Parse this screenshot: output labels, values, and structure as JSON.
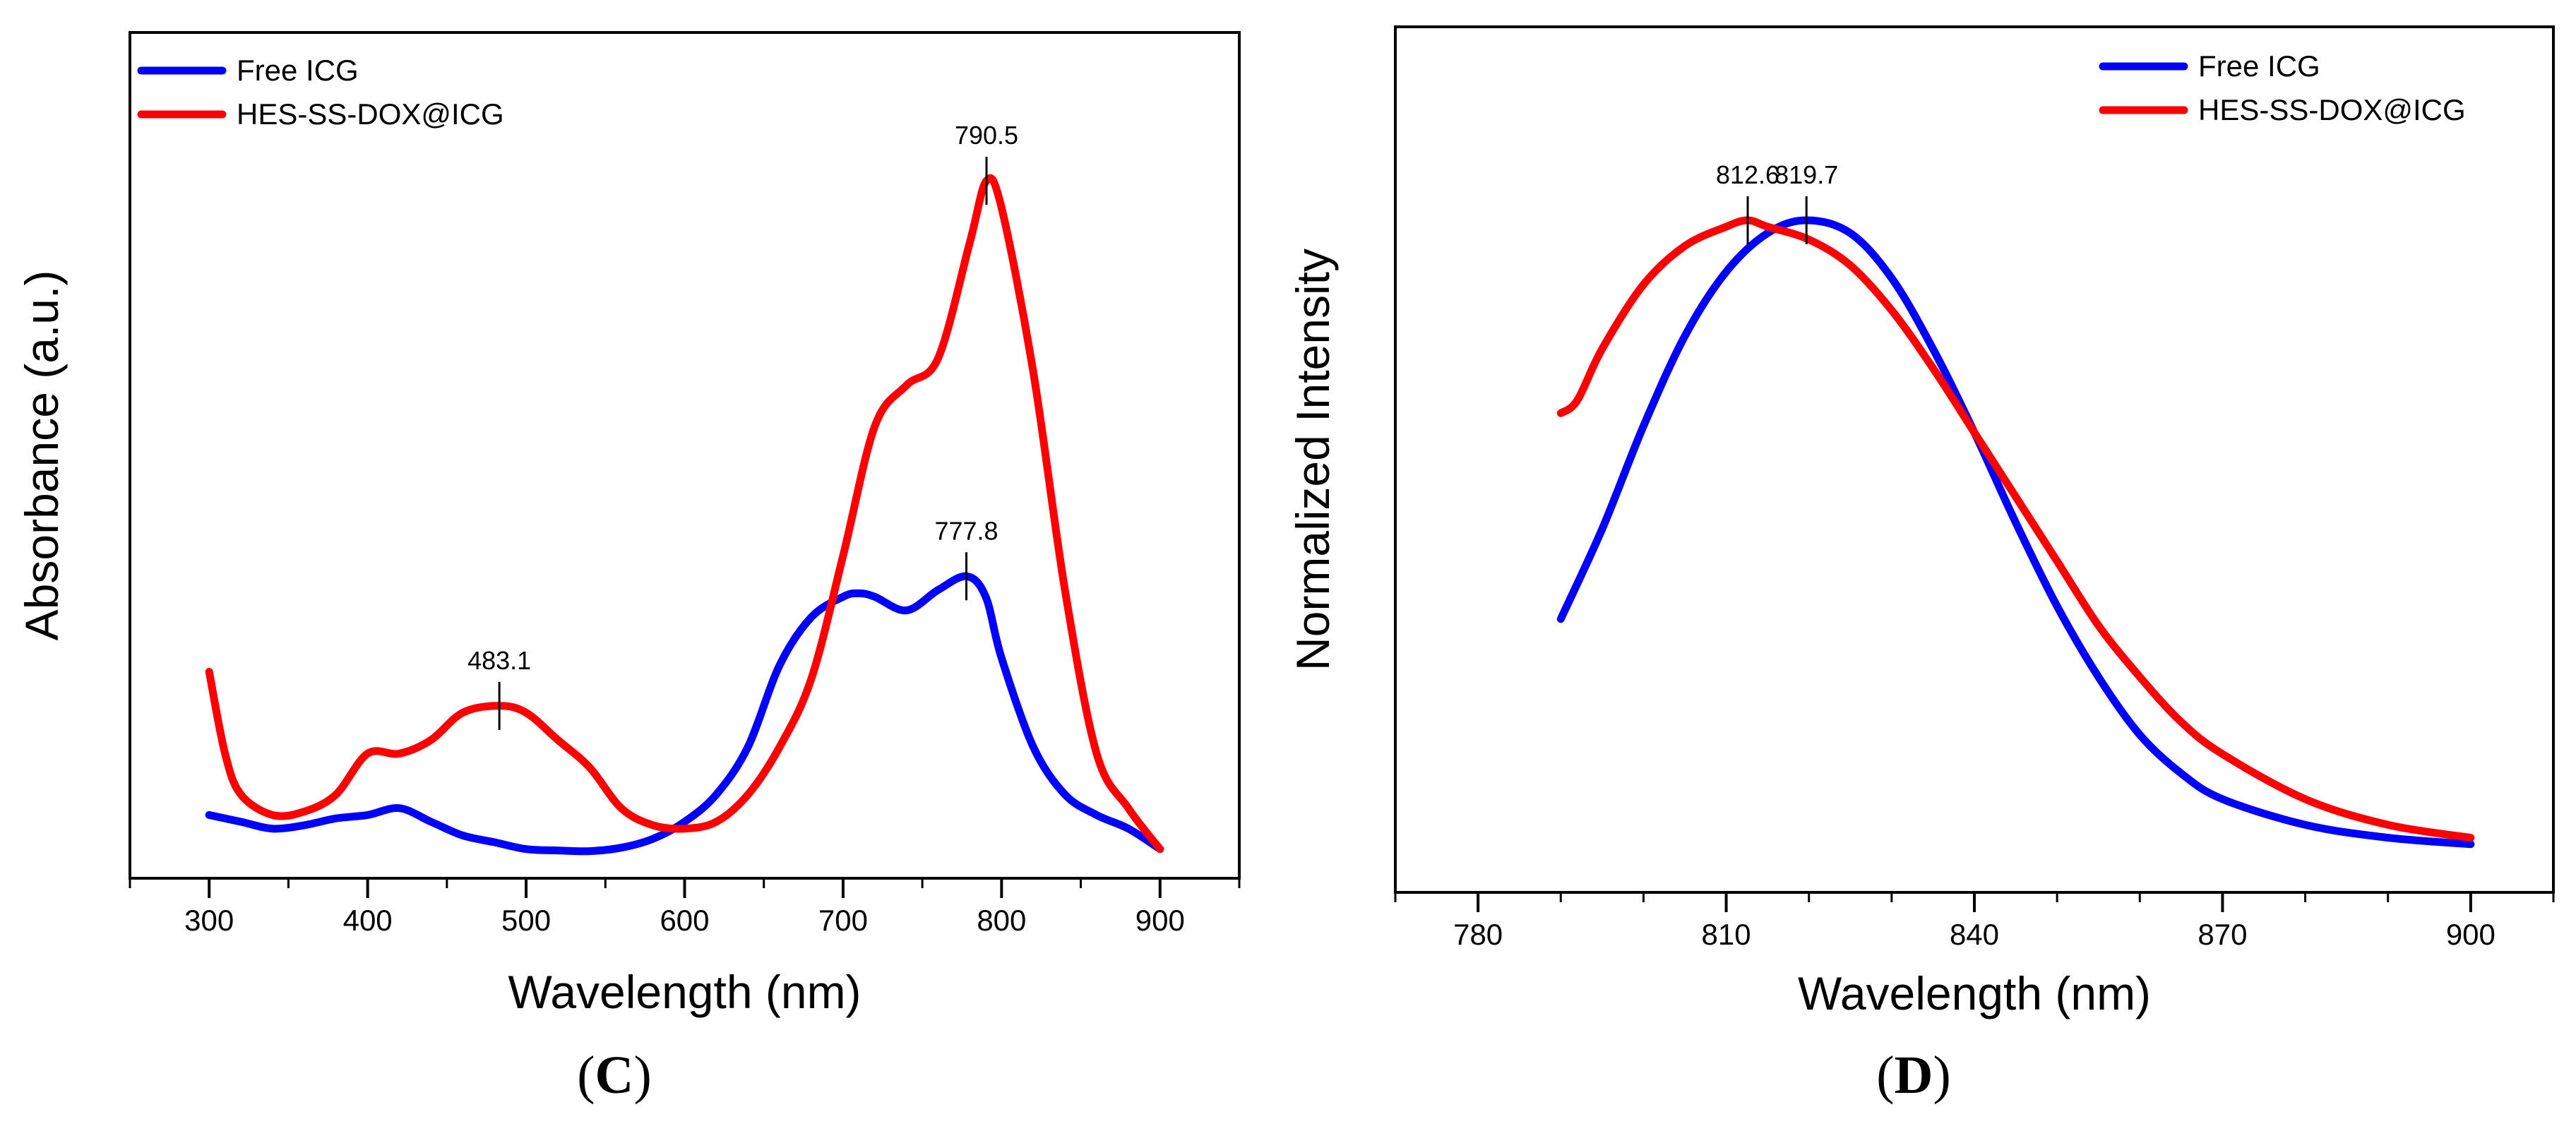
{
  "chart_data": [
    {
      "type": "line",
      "panel_label": "C",
      "xlabel": "Wavelength (nm)",
      "ylabel": "Absorbance (a.u.)",
      "xlim": [
        250,
        950
      ],
      "ylim": [
        0,
        1
      ],
      "xticks": [
        300,
        400,
        500,
        600,
        700,
        800,
        900
      ],
      "y_tick_labels": false,
      "grid": false,
      "legend_position": "top-left",
      "series": [
        {
          "name": "Free ICG",
          "color": "#0000ff",
          "x": [
            300,
            320,
            340,
            360,
            380,
            400,
            420,
            440,
            460,
            480,
            500,
            520,
            540,
            560,
            580,
            600,
            620,
            640,
            660,
            680,
            700,
            710,
            720,
            740,
            760,
            778,
            790,
            800,
            820,
            840,
            860,
            880,
            900
          ],
          "y": [
            0.07,
            0.06,
            0.05,
            0.055,
            0.065,
            0.07,
            0.08,
            0.06,
            0.04,
            0.03,
            0.02,
            0.018,
            0.017,
            0.022,
            0.035,
            0.06,
            0.1,
            0.17,
            0.29,
            0.36,
            0.39,
            0.395,
            0.39,
            0.37,
            0.4,
            0.42,
            0.39,
            0.3,
            0.17,
            0.1,
            0.07,
            0.05,
            0.02
          ]
        },
        {
          "name": "HES-SS-DOX@ICG",
          "color": "#ff0000",
          "x": [
            300,
            310,
            320,
            340,
            360,
            380,
            400,
            420,
            440,
            460,
            483,
            500,
            520,
            540,
            560,
            580,
            600,
            620,
            640,
            660,
            680,
            700,
            720,
            740,
            760,
            780,
            790.5,
            800,
            820,
            840,
            860,
            880,
            900
          ],
          "y": [
            0.28,
            0.16,
            0.1,
            0.07,
            0.075,
            0.1,
            0.16,
            0.16,
            0.18,
            0.22,
            0.23,
            0.22,
            0.18,
            0.14,
            0.08,
            0.055,
            0.05,
            0.06,
            0.1,
            0.17,
            0.27,
            0.45,
            0.64,
            0.7,
            0.74,
            0.91,
            1.0,
            0.96,
            0.72,
            0.4,
            0.16,
            0.08,
            0.02
          ]
        }
      ],
      "annotations": [
        {
          "text": "790.5",
          "x": 790.5,
          "y": 1.0
        },
        {
          "text": "777.8",
          "x": 777.8,
          "y": 0.42
        },
        {
          "text": "483.1",
          "x": 483.1,
          "y": 0.23
        }
      ]
    },
    {
      "type": "line",
      "panel_label": "D",
      "xlabel": "Wavelength (nm)",
      "ylabel": "Normalized Intensity",
      "xlim": [
        770,
        910
      ],
      "ylim": [
        0,
        1
      ],
      "xticks": [
        780,
        810,
        840,
        870,
        900
      ],
      "y_tick_labels": false,
      "grid": false,
      "legend_position": "top-right",
      "series": [
        {
          "name": "Free ICG",
          "color": "#0000ff",
          "x": [
            790,
            795,
            800,
            805,
            810,
            815,
            819.7,
            825,
            830,
            835,
            840,
            845,
            850,
            855,
            860,
            865,
            870,
            880,
            890,
            900
          ],
          "y": [
            0.38,
            0.52,
            0.68,
            0.82,
            0.92,
            0.98,
            1.0,
            0.98,
            0.91,
            0.8,
            0.67,
            0.53,
            0.4,
            0.29,
            0.2,
            0.14,
            0.1,
            0.06,
            0.04,
            0.03
          ]
        },
        {
          "name": "HES-SS-DOX@ICG",
          "color": "#ff0000",
          "x": [
            790,
            792,
            795,
            800,
            805,
            810,
            812.6,
            815,
            820,
            825,
            830,
            835,
            840,
            845,
            850,
            855,
            860,
            865,
            870,
            880,
            890,
            900
          ],
          "y": [
            0.7,
            0.72,
            0.8,
            0.9,
            0.96,
            0.99,
            1.0,
            0.99,
            0.97,
            0.93,
            0.86,
            0.77,
            0.67,
            0.57,
            0.47,
            0.37,
            0.29,
            0.22,
            0.17,
            0.1,
            0.06,
            0.04
          ]
        }
      ],
      "annotations": [
        {
          "text": "819.7",
          "x": 819.7,
          "y": 1.0
        },
        {
          "text": "812.6",
          "x": 812.6,
          "y": 1.0
        }
      ]
    }
  ]
}
